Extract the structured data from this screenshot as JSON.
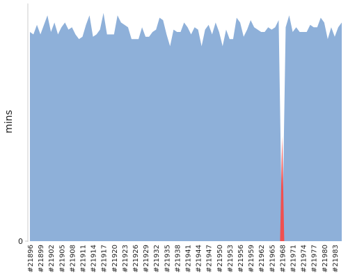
{
  "chart_data": {
    "type": "area",
    "y_label": "mins",
    "categories": [
      "#21896",
      null,
      null,
      "#21899",
      null,
      null,
      "#21902",
      null,
      null,
      "#21905",
      null,
      null,
      "#21908",
      null,
      null,
      "#21911",
      null,
      null,
      "#21914",
      null,
      null,
      "#21917",
      null,
      null,
      "#21920",
      null,
      null,
      "#21923",
      null,
      null,
      "#21926",
      null,
      null,
      "#21929",
      null,
      null,
      "#21932",
      null,
      null,
      "#21935",
      null,
      null,
      "#21938",
      null,
      null,
      "#21941",
      null,
      null,
      "#21944",
      null,
      null,
      "#21947",
      null,
      null,
      "#21950",
      null,
      null,
      "#21953",
      null,
      null,
      "#21956",
      null,
      null,
      "#21959",
      null,
      null,
      "#21962",
      null,
      null,
      "#21965",
      null,
      null,
      "#21968",
      null,
      null,
      "#21971",
      null,
      null,
      "#21974",
      null,
      null,
      "#21977",
      null,
      null,
      "#21980",
      null,
      null,
      "#21983",
      null,
      null
    ],
    "series": [
      {
        "color": "#8eb0d9",
        "values": [
          8.8,
          8.7,
          9.1,
          8.7,
          9.1,
          9.5,
          8.8,
          9.2,
          8.7,
          9.0,
          9.2,
          8.9,
          9.0,
          8.7,
          8.5,
          8.6,
          9.1,
          9.5,
          8.6,
          8.7,
          8.9,
          9.6,
          8.7,
          8.7,
          8.7,
          9.5,
          9.2,
          9.1,
          9.0,
          8.5,
          8.5,
          8.5,
          9.0,
          8.6,
          8.6,
          8.8,
          8.9,
          9.4,
          9.3,
          8.7,
          8.2,
          8.9,
          8.8,
          8.8,
          9.2,
          9.0,
          8.7,
          9.0,
          8.9,
          8.2,
          8.9,
          9.1,
          8.7,
          9.2,
          8.8,
          8.2,
          8.9,
          8.5,
          8.5,
          9.4,
          9.2,
          8.6,
          8.9,
          9.3,
          9.0,
          8.9,
          8.8,
          8.8,
          9.0,
          8.9,
          9.0,
          9.3,
          0,
          9.0,
          9.5,
          8.8,
          9.0,
          8.8,
          8.8,
          8.8,
          9.1,
          9.0,
          9.0,
          9.4,
          9.2,
          8.5,
          9.0,
          8.6,
          9.0,
          9.2
        ]
      },
      {
        "color": "#f05050",
        "values": [
          null,
          null,
          null,
          null,
          null,
          null,
          null,
          null,
          null,
          null,
          null,
          null,
          null,
          null,
          null,
          null,
          null,
          null,
          null,
          null,
          null,
          null,
          null,
          null,
          null,
          null,
          null,
          null,
          null,
          null,
          null,
          null,
          null,
          null,
          null,
          null,
          null,
          null,
          null,
          null,
          null,
          null,
          null,
          null,
          null,
          null,
          null,
          null,
          null,
          null,
          null,
          null,
          null,
          null,
          null,
          null,
          null,
          null,
          null,
          null,
          null,
          null,
          null,
          null,
          null,
          null,
          null,
          null,
          null,
          null,
          null,
          null,
          4.4,
          null,
          null,
          null,
          null,
          null,
          null,
          null,
          null,
          null,
          null,
          null,
          null,
          null,
          null,
          null,
          null,
          null
        ]
      }
    ],
    "ylim": [
      0,
      10
    ],
    "yticks": [
      0
    ]
  }
}
